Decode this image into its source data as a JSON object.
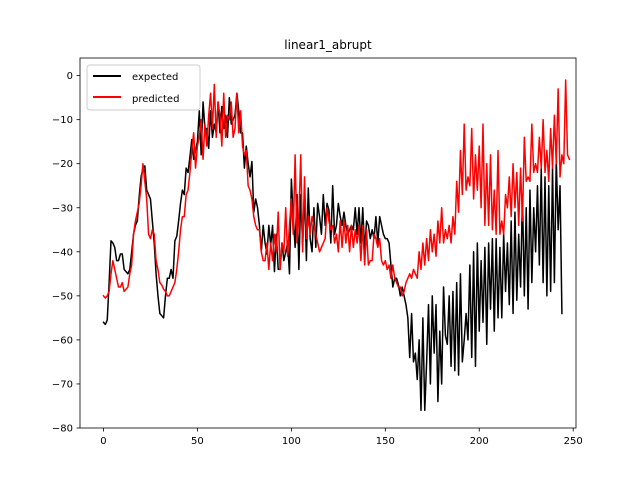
{
  "chart_data": {
    "type": "line",
    "title": "linear1_abrupt",
    "xlabel": "",
    "ylabel": "",
    "xlim": [
      -12.5,
      251.5
    ],
    "ylim": [
      -80,
      4
    ],
    "x_ticks": [
      0,
      50,
      100,
      150,
      200,
      250
    ],
    "y_ticks": [
      0,
      -10,
      -20,
      -30,
      -40,
      -50,
      -60,
      -70,
      -80
    ],
    "grid": false,
    "legend_position": "upper-left",
    "series": [
      {
        "name": "expected",
        "color": "#000000",
        "y": [
          -56,
          -56.5,
          -55.5,
          -47,
          -37.5,
          -38,
          -39,
          -42,
          -42,
          -40.5,
          -40.5,
          -44,
          -44.5,
          -45,
          -44,
          -40,
          -36,
          -34,
          -33,
          -27.5,
          -23,
          -21,
          -20.5,
          -26,
          -27,
          -28,
          -33,
          -38,
          -45,
          -50,
          -54,
          -54.5,
          -55,
          -50,
          -46,
          -46,
          -44,
          -46,
          -37.5,
          -36.5,
          -33,
          -29,
          -26,
          -27,
          -21,
          -22,
          -18.5,
          -14.5,
          -19,
          -17,
          -15,
          -8,
          -18,
          -6,
          -12,
          -12,
          -16.5,
          -8,
          -14,
          -11,
          -13,
          -6,
          -13,
          -7,
          -12,
          -9,
          -14,
          -5,
          -11,
          -10,
          -9,
          -4,
          -8,
          -13,
          -13,
          -21,
          -16,
          -20,
          -23,
          -19.5,
          -31,
          -28,
          -30,
          -34,
          -40,
          -34,
          -38,
          -40.5,
          -34,
          -38.5,
          -34,
          -44.5,
          -36,
          -44,
          -44,
          -38,
          -42,
          -40,
          -38,
          -45,
          -23.5,
          -32,
          -39,
          -27,
          -44,
          -27,
          -38.5,
          -26,
          -42,
          -25.5,
          -37,
          -40,
          -30,
          -39,
          -29,
          -32,
          -36,
          -27,
          -34,
          -29,
          -30.5,
          -38,
          -25,
          -36,
          -34,
          -29,
          -32,
          -34,
          -31,
          -34,
          -36,
          -35,
          -34,
          -35,
          -30,
          -36,
          -30,
          -38,
          -30,
          -40,
          -33,
          -34,
          -37,
          -35,
          -37,
          -32,
          -38,
          -32,
          -34,
          -36,
          -37,
          -37,
          -38,
          -43,
          -48,
          -46,
          -46,
          -47.5,
          -50,
          -48,
          -50,
          -52,
          -55,
          -64,
          -54,
          -65,
          -63,
          -69,
          -60,
          -76,
          -55,
          -76,
          -65,
          -52,
          -70,
          -50,
          -63,
          -52,
          -74,
          -58,
          -70,
          -48,
          -59,
          -61,
          -50,
          -66,
          -49,
          -67,
          -47,
          -68,
          -45,
          -65,
          -60,
          -54,
          -60,
          -43,
          -64,
          -40,
          -66,
          -38,
          -58,
          -42,
          -56,
          -39,
          -61,
          -38,
          -53,
          -37,
          -58,
          -37,
          -55,
          -39,
          -55,
          -36,
          -49,
          -38,
          -52,
          -33,
          -54,
          -31,
          -51,
          -36,
          -48,
          -27,
          -50,
          -30,
          -53,
          -26,
          -47,
          -30,
          -40,
          -25,
          -43,
          -21,
          -47,
          -23,
          -50,
          -25,
          -49,
          -21,
          -47,
          -19,
          -35,
          -25,
          -54
        ]
      },
      {
        "name": "predicted",
        "color": "#ff0000",
        "y": [
          -50,
          -50.5,
          -50,
          -49,
          -45,
          -42,
          -44,
          -46,
          -48,
          -48,
          -47,
          -49,
          -48.5,
          -48,
          -45,
          -43,
          -36,
          -33,
          -31,
          -29,
          -25,
          -20,
          -24,
          -28,
          -36,
          -37,
          -35,
          -36,
          -42,
          -44,
          -47,
          -47.5,
          -48.5,
          -49,
          -50,
          -50,
          -49,
          -48,
          -47,
          -44,
          -40,
          -35,
          -32,
          -32,
          -27,
          -26,
          -22,
          -17,
          -13,
          -21,
          -16,
          -14,
          -10,
          -19,
          -11,
          -16,
          -9,
          -4,
          -12,
          -2,
          -14,
          -6,
          -9,
          -16,
          -4,
          -14,
          -9,
          -10,
          -6,
          -14,
          -12,
          -4,
          -13,
          -8,
          -16,
          -18,
          -17,
          -25,
          -26,
          -28,
          -32,
          -34,
          -35,
          -35,
          -40,
          -42,
          -42,
          -38,
          -44,
          -38,
          -42,
          -36,
          -40,
          -31,
          -44,
          -38,
          -40,
          -30,
          -41,
          -34,
          -28,
          -36,
          -18,
          -38,
          -32,
          -18,
          -40,
          -23,
          -37,
          -32,
          -36,
          -32,
          -34,
          -36,
          -38,
          -40,
          -39,
          -38,
          -37,
          -30,
          -33,
          -35,
          -34,
          -38,
          -36,
          -40,
          -33,
          -39,
          -33,
          -38,
          -34,
          -40,
          -34,
          -39,
          -35,
          -38,
          -34,
          -42,
          -34,
          -43,
          -35,
          -43,
          -42,
          -42,
          -36,
          -37,
          -39,
          -37,
          -42,
          -43,
          -42,
          -44,
          -43,
          -46,
          -43,
          -46,
          -47,
          -48,
          -48,
          -50,
          -49,
          -47,
          -46,
          -45,
          -46,
          -44,
          -45,
          -46,
          -40,
          -44,
          -38,
          -43,
          -37,
          -42,
          -35,
          -40,
          -36,
          -41,
          -33,
          -38,
          -30,
          -38,
          -35,
          -37,
          -34,
          -38,
          -32,
          -36,
          -24,
          -31,
          -17,
          -27,
          -11,
          -26,
          -23,
          -25,
          -12,
          -28,
          -18,
          -26,
          -16,
          -30,
          -11,
          -34,
          -20,
          -34,
          -18,
          -35,
          -26,
          -36,
          -17,
          -36,
          -33,
          -36,
          -27,
          -30,
          -23,
          -32,
          -20,
          -30,
          -22,
          -34,
          -21,
          -33,
          -14,
          -24,
          -23,
          -24,
          -11,
          -22,
          -20,
          -22,
          -14,
          -21,
          -10,
          -22,
          -17,
          -24,
          -12,
          -21,
          -9,
          -20,
          -3,
          -23,
          -18,
          -20,
          -1,
          -18,
          -19
        ]
      }
    ]
  }
}
